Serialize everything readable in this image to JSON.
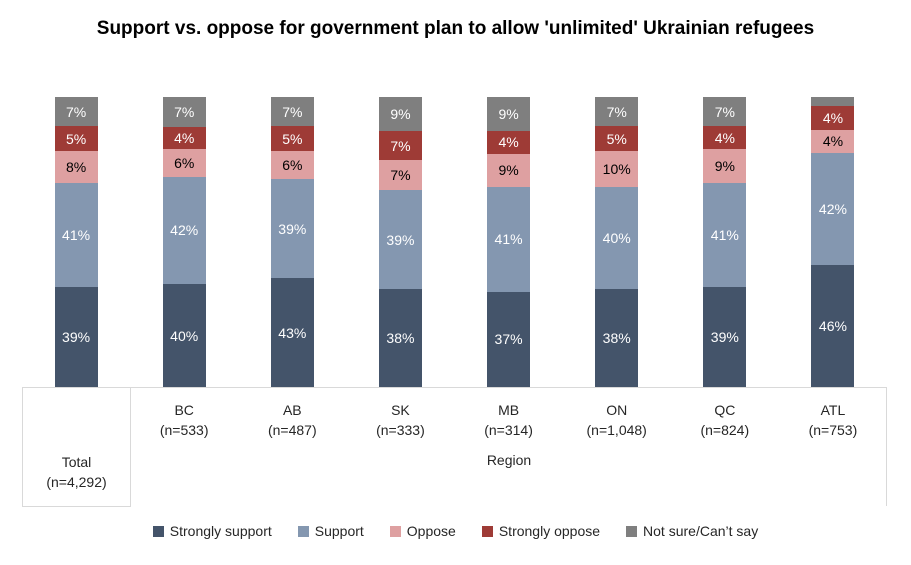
{
  "chart_data": {
    "type": "bar",
    "subtype": "stacked-percent-column",
    "title": "Support vs. oppose for government plan to allow 'unlimited' Ukrainian refugees",
    "categories": [
      "Total",
      "BC",
      "AB",
      "SK",
      "MB",
      "ON",
      "QC",
      "ATL"
    ],
    "category_sublabels": [
      "(n=4,292)",
      "(n=533)",
      "(n=487)",
      "(n=333)",
      "(n=314)",
      "(n=1,048)",
      "(n=824)",
      "(n=753)"
    ],
    "group_label": "Region",
    "ylim": [
      0,
      100
    ],
    "grid": false,
    "legend_position": "bottom",
    "axis_line_color": "#d9d9d9",
    "series": [
      {
        "name": "Strongly support",
        "color": "#44546a",
        "label_color": "#ffffff",
        "values": [
          39,
          40,
          43,
          38,
          37,
          38,
          39,
          46
        ],
        "labels": [
          "39%",
          "40%",
          "43%",
          "38%",
          "37%",
          "38%",
          "39%",
          "46%"
        ]
      },
      {
        "name": "Support",
        "color": "#8497b0",
        "label_color": "#ffffff",
        "values": [
          41,
          42,
          39,
          39,
          41,
          40,
          41,
          42
        ],
        "labels": [
          "41%",
          "42%",
          "39%",
          "39%",
          "41%",
          "40%",
          "41%",
          "42%"
        ]
      },
      {
        "name": "Oppose",
        "color": "#dea0a1",
        "label_color": "#000000",
        "values": [
          8,
          6,
          6,
          7,
          9,
          10,
          9,
          4
        ],
        "labels": [
          "8%",
          "6%",
          "6%",
          "7%",
          "9%",
          "10%",
          "9%",
          "4%"
        ]
      },
      {
        "name": "Strongly oppose",
        "color": "#9e3b36",
        "label_color": "#ffffff",
        "values": [
          5,
          4,
          5,
          7,
          4,
          5,
          4,
          4
        ],
        "labels": [
          "5%",
          "4%",
          "5%",
          "7%",
          "4%",
          "5%",
          "4%",
          "4%"
        ]
      },
      {
        "name": "Not sure/Can’t say",
        "color": "#7f7f7f",
        "label_color": "#ffffff",
        "values": [
          7,
          7,
          7,
          9,
          9,
          7,
          7,
          4
        ],
        "labels": [
          "7%",
          "7%",
          "7%",
          "9%",
          "9%",
          "7%",
          "7%",
          ""
        ]
      }
    ]
  }
}
